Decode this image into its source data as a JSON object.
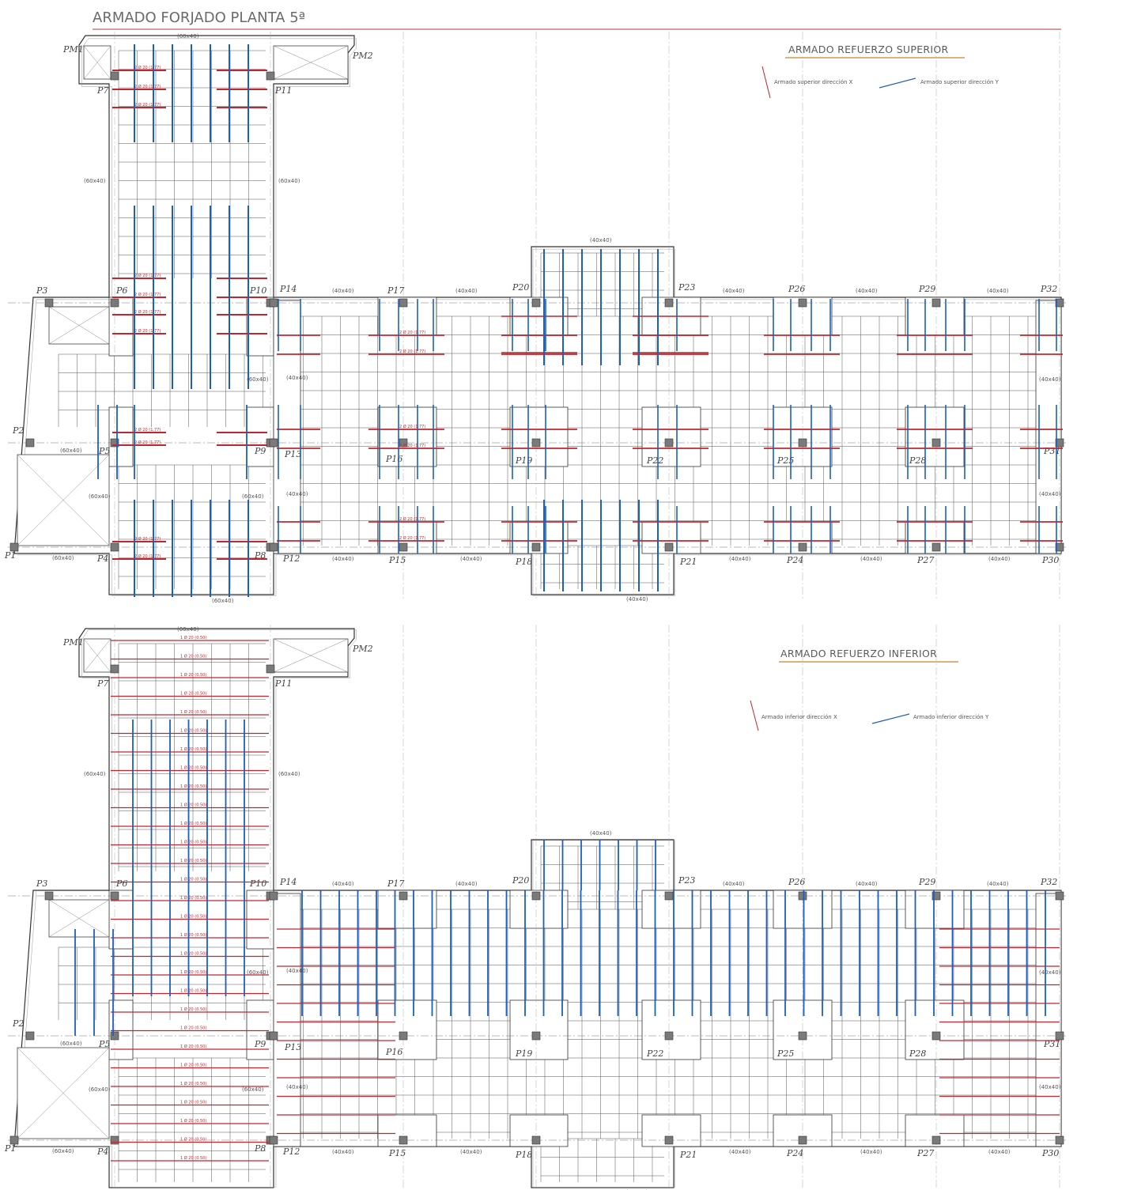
{
  "title": "ARMADO FORJADO PLANTA 5ª",
  "colors": {
    "title_rule": "#b23a3a",
    "subtitle_rule": "#c9852f",
    "x_bars": "#c0272d",
    "y_bars": "#1d5fbf",
    "grid": "#555555",
    "column": "#7a7a7a"
  },
  "plans": [
    {
      "key": "superior",
      "subtitle": "ARMADO REFUERZO SUPERIOR",
      "legend_x": "Armado superior dirección X",
      "legend_y": "Armado superior dirección Y"
    },
    {
      "key": "inferior",
      "subtitle": "ARMADO REFUERZO INFERIOR",
      "legend_x": "Armado inferior dirección X",
      "legend_y": "Armado inferior dirección Y"
    }
  ],
  "column_labels": [
    "P1",
    "P2",
    "P3",
    "P4",
    "P5",
    "P6",
    "P7",
    "P8",
    "P9",
    "P10",
    "P11",
    "P12",
    "P13",
    "P14",
    "P15",
    "P16",
    "P17",
    "P18",
    "P19",
    "P20",
    "P21",
    "P22",
    "P23",
    "P24",
    "P25",
    "P26",
    "P27",
    "P28",
    "P29",
    "P30",
    "P31",
    "P32",
    "PM1",
    "PM2"
  ],
  "beam_sizes": {
    "wide": "(60x40)",
    "narrow": "(40x40)"
  },
  "bar_label_superior": "2 Ø 20 (1.77)",
  "bar_label_inferior": "1 Ø 20 (0.50)"
}
